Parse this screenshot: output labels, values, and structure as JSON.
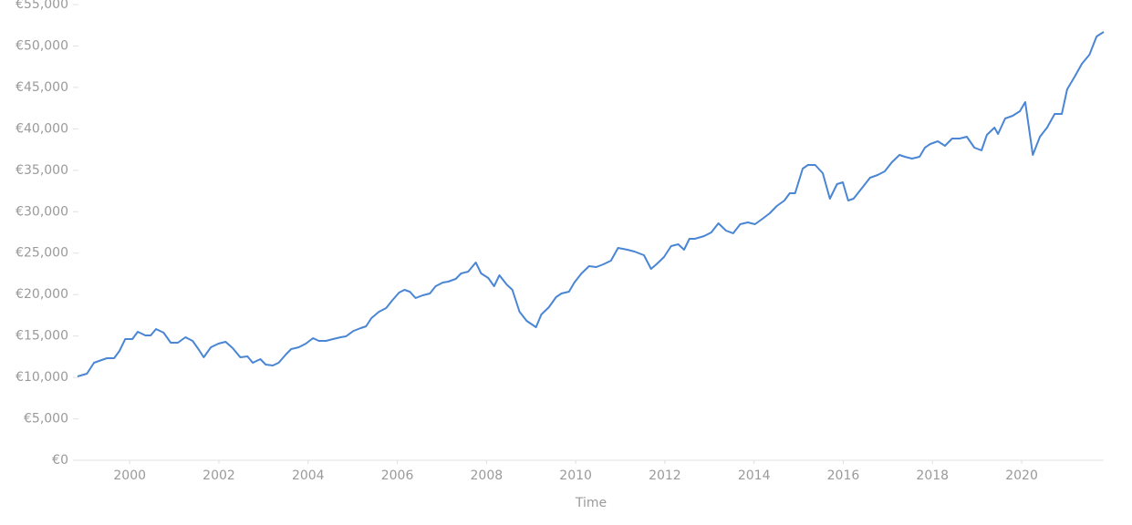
{
  "chart_data": {
    "type": "line",
    "x_label": "Time",
    "color": "#4a86d4",
    "x": [
      1998.83,
      1999.04,
      1999.2,
      1999.37,
      1999.49,
      1999.65,
      1999.77,
      1999.9,
      2000.06,
      2000.18,
      2000.35,
      2000.47,
      2000.59,
      2000.76,
      2000.92,
      2001.08,
      2001.25,
      2001.41,
      2001.54,
      2001.66,
      2001.82,
      2001.99,
      2002.15,
      2002.31,
      2002.48,
      2002.64,
      2002.76,
      2002.93,
      2003.05,
      2003.21,
      2003.34,
      2003.5,
      2003.62,
      2003.79,
      2003.95,
      2004.11,
      2004.24,
      2004.4,
      2004.56,
      2004.73,
      2004.85,
      2005.02,
      2005.18,
      2005.3,
      2005.42,
      2005.59,
      2005.75,
      2005.88,
      2006.04,
      2006.16,
      2006.28,
      2006.41,
      2006.57,
      2006.73,
      2006.86,
      2007.02,
      2007.14,
      2007.31,
      2007.43,
      2007.59,
      2007.76,
      2007.88,
      2008.04,
      2008.17,
      2008.29,
      2008.45,
      2008.58,
      2008.74,
      2008.9,
      2009.11,
      2009.23,
      2009.4,
      2009.56,
      2009.68,
      2009.85,
      2009.97,
      2010.13,
      2010.3,
      2010.46,
      2010.62,
      2010.79,
      2010.95,
      2011.16,
      2011.32,
      2011.53,
      2011.69,
      2011.81,
      2011.98,
      2012.14,
      2012.3,
      2012.43,
      2012.55,
      2012.67,
      2012.88,
      2013.04,
      2013.2,
      2013.37,
      2013.53,
      2013.69,
      2013.86,
      2014.02,
      2014.19,
      2014.35,
      2014.51,
      2014.68,
      2014.8,
      2014.92,
      2015.09,
      2015.21,
      2015.37,
      2015.54,
      2015.7,
      2015.86,
      2015.99,
      2016.11,
      2016.23,
      2016.44,
      2016.6,
      2016.77,
      2016.93,
      2017.09,
      2017.26,
      2017.38,
      2017.54,
      2017.71,
      2017.83,
      2017.95,
      2018.12,
      2018.28,
      2018.44,
      2018.61,
      2018.77,
      2018.94,
      2019.1,
      2019.22,
      2019.39,
      2019.47,
      2019.63,
      2019.8,
      2019.96,
      2020.08,
      2020.25,
      2020.41,
      2020.57,
      2020.74,
      2020.9,
      2021.02,
      2021.19,
      2021.35,
      2021.52,
      2021.68,
      2021.84
    ],
    "values": [
      10120,
      10450,
      11770,
      12100,
      12320,
      12320,
      13200,
      14630,
      14630,
      15510,
      15070,
      15070,
      15840,
      15400,
      14190,
      14190,
      14850,
      14410,
      13420,
      12430,
      13640,
      14080,
      14300,
      13530,
      12430,
      12540,
      11770,
      12210,
      11550,
      11440,
      11770,
      12760,
      13420,
      13640,
      14080,
      14740,
      14410,
      14410,
      14630,
      14850,
      14960,
      15620,
      15950,
      16170,
      17160,
      17930,
      18370,
      19250,
      20240,
      20570,
      20350,
      19580,
      19910,
      20130,
      21010,
      21450,
      21560,
      21890,
      22550,
      22770,
      23870,
      22550,
      22000,
      21010,
      22330,
      21230,
      20570,
      17930,
      16830,
      16060,
      17600,
      18480,
      19690,
      20130,
      20350,
      21450,
      22550,
      23430,
      23320,
      23650,
      24090,
      25630,
      25410,
      25190,
      24750,
      23100,
      23650,
      24530,
      25850,
      26070,
      25410,
      26730,
      26730,
      27060,
      27500,
      28600,
      27720,
      27390,
      28490,
      28710,
      28490,
      29150,
      29810,
      30690,
      31350,
      32230,
      32230,
      35200,
      35640,
      35640,
      34650,
      31570,
      33330,
      33550,
      31350,
      31570,
      33000,
      34100,
      34430,
      34870,
      35970,
      36850,
      36630,
      36410,
      36630,
      37730,
      38170,
      38500,
      37950,
      38830,
      38830,
      39050,
      37730,
      37400,
      39270,
      40150,
      39380,
      41250,
      41580,
      42130,
      43230,
      36850,
      39050,
      40150,
      41800,
      41800,
      44770,
      46310,
      47850,
      48950,
      51150,
      51700
    ],
    "xlim": [
      1998.83,
      2021.84
    ],
    "xticks": [
      2000,
      2002,
      2004,
      2006,
      2008,
      2010,
      2012,
      2014,
      2016,
      2018,
      2020
    ],
    "ylim": [
      0,
      55000
    ],
    "yticks": [
      {
        "value": 0,
        "label": "€0"
      },
      {
        "value": 5000,
        "label": "€5,000"
      },
      {
        "value": 10000,
        "label": "€10,000"
      },
      {
        "value": 15000,
        "label": "€15,000"
      },
      {
        "value": 20000,
        "label": "€20,000"
      },
      {
        "value": 25000,
        "label": "€25,000"
      },
      {
        "value": 30000,
        "label": "€30,000"
      },
      {
        "value": 35000,
        "label": "€35,000"
      },
      {
        "value": 40000,
        "label": "€40,000"
      },
      {
        "value": 45000,
        "label": "€45,000"
      },
      {
        "value": 50000,
        "label": "€50,000"
      },
      {
        "value": 55000,
        "label": "€55,000"
      }
    ]
  }
}
